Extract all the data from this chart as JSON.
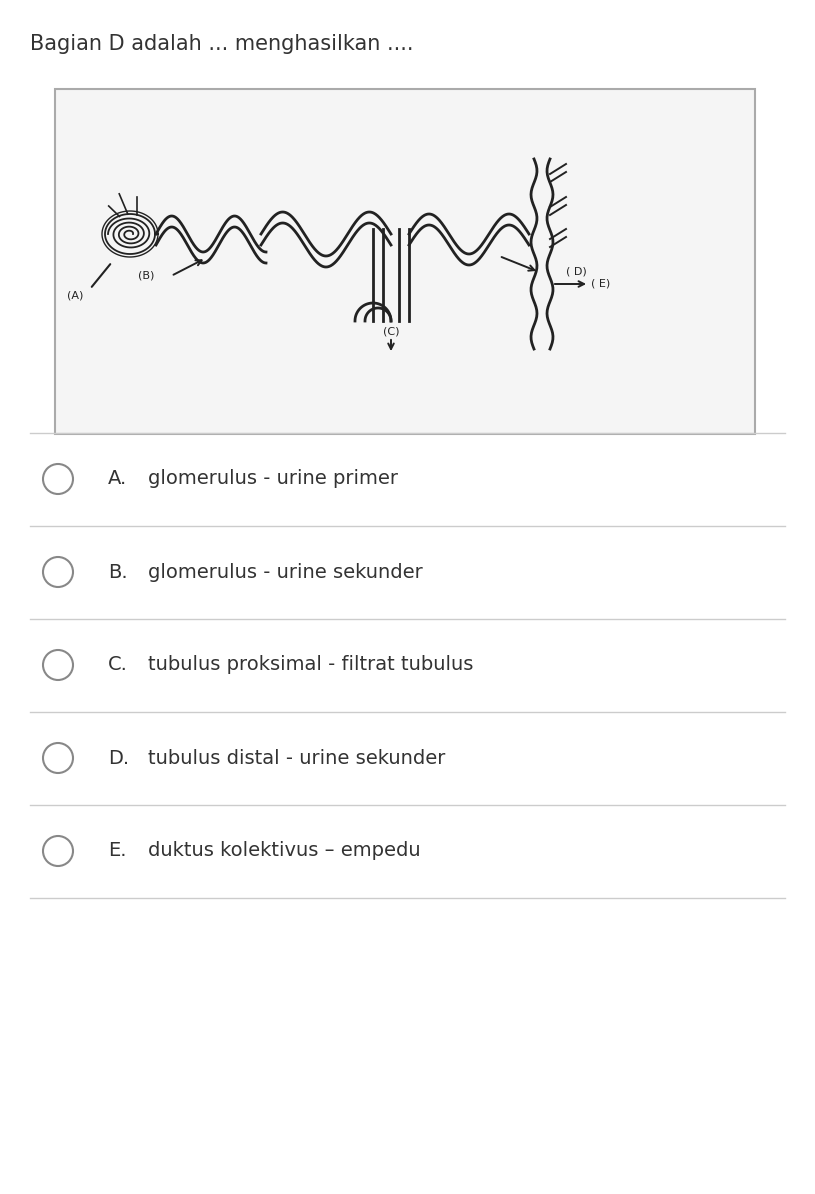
{
  "title": "Bagian D adalah ... menghasilkan ....",
  "title_fontsize": 15,
  "background_color": "#ffffff",
  "diagram_box_edgecolor": "#aaaaaa",
  "diagram_box_facecolor": "#f5f5f5",
  "options": [
    {
      "label": "A.",
      "text": "glomerulus - urine primer"
    },
    {
      "label": "B.",
      "text": "glomerulus - urine sekunder"
    },
    {
      "label": "C.",
      "text": "tubulus proksimal - filtrat tubulus"
    },
    {
      "label": "D.",
      "text": "tubulus distal - urine sekunder"
    },
    {
      "label": "E.",
      "text": "duktus kolektivus – empedu"
    }
  ],
  "divider_color": "#cccccc",
  "text_color": "#333333",
  "option_fontsize": 14,
  "radio_color": "#888888",
  "draw_color": "#222222"
}
